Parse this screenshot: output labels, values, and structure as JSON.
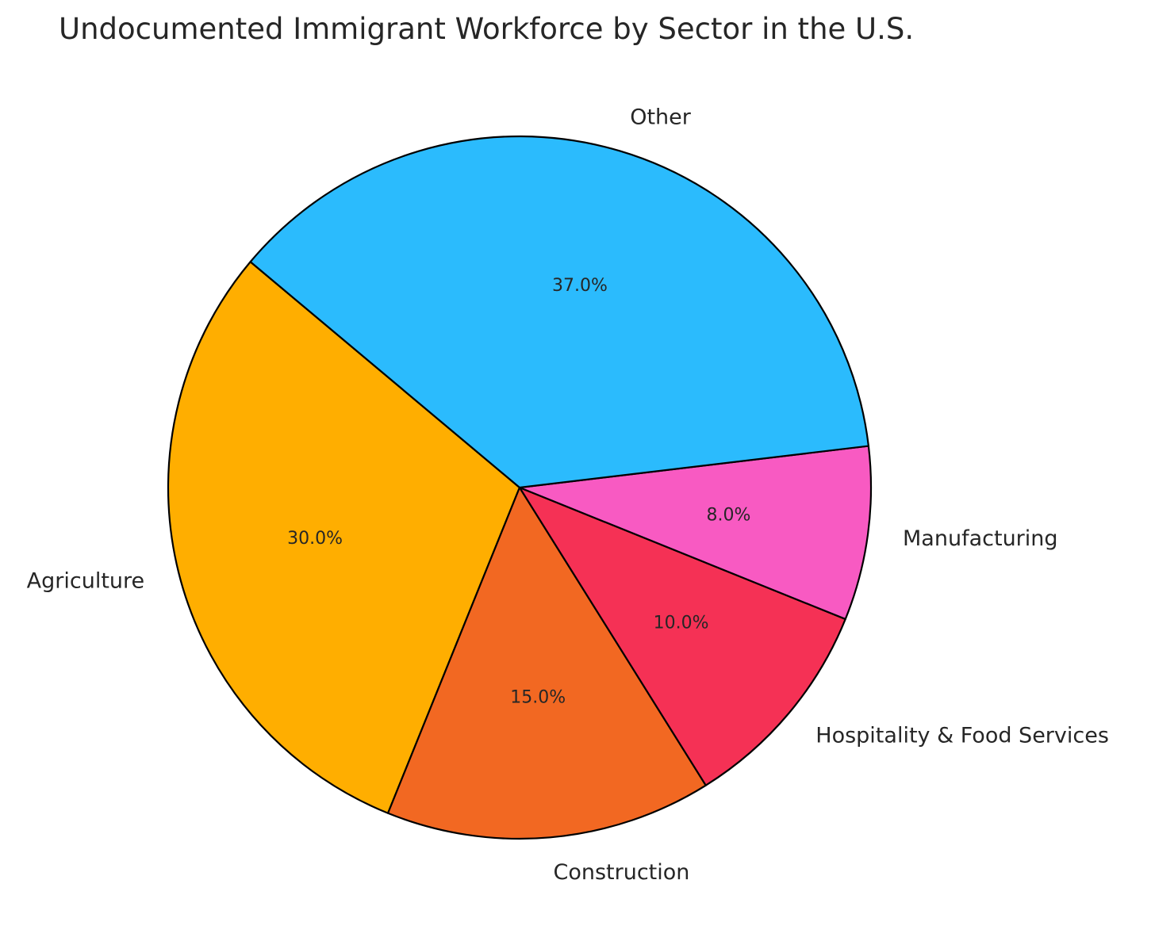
{
  "chart_data": {
    "type": "pie",
    "title": "Undocumented Immigrant Workforce by Sector in the U.S.",
    "start_angle_deg": 140,
    "direction": "counterclockwise",
    "slices": [
      {
        "label": "Agriculture",
        "value": 30.0,
        "pct_label": "30.0%",
        "color": "#FFAE00"
      },
      {
        "label": "Construction",
        "value": 15.0,
        "pct_label": "15.0%",
        "color": "#F26822"
      },
      {
        "label": "Hospitality & Food Services",
        "value": 10.0,
        "pct_label": "10.0%",
        "color": "#F53155"
      },
      {
        "label": "Manufacturing",
        "value": 8.0,
        "pct_label": "8.0%",
        "color": "#F85AC2"
      },
      {
        "label": "Other",
        "value": 37.0,
        "pct_label": "37.0%",
        "color": "#2BBBFD"
      }
    ],
    "edge_color": "#000000"
  }
}
